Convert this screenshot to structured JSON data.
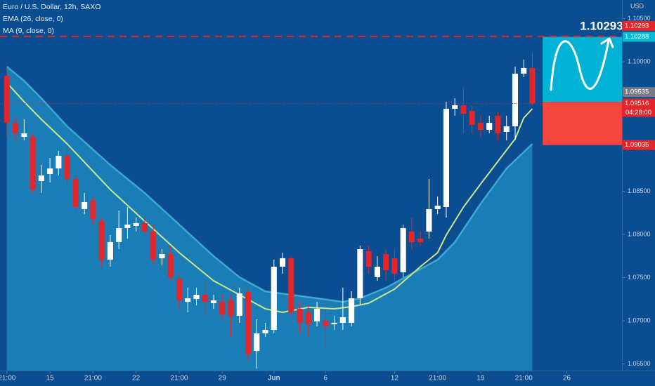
{
  "chart_data": {
    "type": "candlestick",
    "title": "Euro / U.S. Dollar, 12h, SAXO",
    "indicators": [
      "EMA (26, close, 0)",
      "MA (9, close, 0)"
    ],
    "currency": "USD",
    "up_color": "#ffffff",
    "down_color": "#e3262b",
    "open": [
      1.09837,
      1.09293,
      1.0913,
      1.0913,
      1.08618,
      1.08699,
      1.08764,
      1.08911,
      1.08642,
      1.08293,
      1.0839,
      1.08154,
      1.07707,
      1.07911,
      1.08073,
      1.08098,
      1.0813,
      1.08033,
      1.07724,
      1.07772,
      1.0748,
      1.07219,
      1.07252,
      1.07301,
      1.07203,
      1.07219,
      1.07236,
      1.07057,
      1.07333,
      1.0665,
      1.06854,
      1.06894,
      1.07626,
      1.07724,
      1.07138,
      1.07098,
      1.06992,
      1.07,
      1.06959,
      1.06976,
      1.06976,
      1.0726,
      1.07805,
      1.07504,
      1.07772,
      1.07724,
      1.07561,
      1.08033,
      1.07951,
      1.08033,
      1.08293,
      1.08317,
      1.09455,
      1.09496,
      1.09431,
      1.09293,
      1.09211,
      1.09374,
      1.09187,
      1.09252,
      1.09862,
      1.09927
    ],
    "high": [
      1.09943,
      1.09374,
      1.09333,
      1.09171,
      1.08805,
      1.08886,
      1.08967,
      1.09008,
      1.08683,
      1.0848,
      1.08439,
      1.08195,
      1.07992,
      1.08276,
      1.08317,
      1.08195,
      1.08195,
      1.08114,
      1.07829,
      1.0787,
      1.07545,
      1.07382,
      1.07382,
      1.07463,
      1.07301,
      1.07301,
      1.07301,
      1.07382,
      1.07382,
      1.07016,
      1.06976,
      1.07707,
      1.07789,
      1.07748,
      1.07219,
      1.07179,
      1.07219,
      1.07138,
      1.07057,
      1.07382,
      1.07342,
      1.0787,
      1.0787,
      1.07748,
      1.07829,
      1.07829,
      1.08114,
      1.08195,
      1.08033,
      1.08642,
      1.08439,
      1.09537,
      1.09577,
      1.09699,
      1.09496,
      1.09374,
      1.09374,
      1.09415,
      1.09374,
      1.09943,
      1.10024,
      1.10106
    ],
    "low": [
      1.0913,
      1.09089,
      1.09089,
      1.0848,
      1.0848,
      1.08602,
      1.08683,
      1.08561,
      1.08276,
      1.08236,
      1.08114,
      1.07626,
      1.07626,
      1.07829,
      1.07951,
      1.08033,
      1.07992,
      1.07642,
      1.07642,
      1.07463,
      1.07138,
      1.07098,
      1.07179,
      1.07057,
      1.07138,
      1.07016,
      1.06813,
      1.06976,
      1.06529,
      1.06447,
      1.06813,
      1.06854,
      1.07545,
      1.07057,
      1.06854,
      1.06813,
      1.06935,
      1.06691,
      1.06894,
      1.06894,
      1.06935,
      1.07179,
      1.07545,
      1.07463,
      1.07463,
      1.0748,
      1.07504,
      1.07829,
      1.0787,
      1.07951,
      1.08236,
      1.08195,
      1.09374,
      1.09171,
      1.09171,
      1.0913,
      1.09171,
      1.09089,
      1.09089,
      1.09089,
      1.09821,
      1.09496
    ],
    "close": [
      1.09293,
      1.09171,
      1.09171,
      1.0852,
      1.08683,
      1.08764,
      1.08911,
      1.08642,
      1.08317,
      1.08374,
      1.08179,
      1.07707,
      1.07911,
      1.08073,
      1.08114,
      1.0813,
      1.08033,
      1.07707,
      1.07772,
      1.07504,
      1.07236,
      1.0726,
      1.07301,
      1.07219,
      1.07236,
      1.07073,
      1.07057,
      1.07317,
      1.0661,
      1.06854,
      1.06894,
      1.07626,
      1.07724,
      1.07098,
      1.06976,
      1.06959,
      1.07138,
      1.06935,
      1.06976,
      1.07041,
      1.0726,
      1.07829,
      1.07626,
      1.07626,
      1.07585,
      1.07545,
      1.08073,
      1.07911,
      1.07911,
      1.08293,
      1.08333,
      1.09455,
      1.09496,
      1.09398,
      1.09268,
      1.09211,
      1.09293,
      1.09171,
      1.09252,
      1.09862,
      1.09927,
      1.09516
    ],
    "ema_band": {
      "color": "#1a7db6",
      "line_color": "#4fbcdc",
      "x": [
        0,
        2,
        4,
        7,
        12,
        16,
        20,
        24,
        27,
        30,
        33,
        36,
        39,
        41,
        44,
        47,
        50,
        52,
        55,
        58,
        61
      ],
      "values": [
        1.09943,
        1.0978,
        1.09577,
        1.09252,
        1.08805,
        1.0848,
        1.08114,
        1.07748,
        1.07504,
        1.07341,
        1.07301,
        1.0726,
        1.07219,
        1.0726,
        1.07382,
        1.07545,
        1.07707,
        1.07911,
        1.08358,
        1.08764,
        1.09049
      ]
    },
    "ma_line": {
      "color": "#c9e68a",
      "x": [
        0,
        2,
        4,
        7,
        12,
        16,
        20,
        24,
        27,
        30,
        32,
        35,
        38,
        40,
        42,
        45,
        48,
        50,
        51,
        53,
        55,
        57,
        59,
        60,
        61
      ],
      "values": [
        1.09756,
        1.09537,
        1.09333,
        1.09049,
        1.0852,
        1.08154,
        1.07789,
        1.07463,
        1.07301,
        1.07138,
        1.07098,
        1.07155,
        1.07138,
        1.07163,
        1.07203,
        1.07366,
        1.07626,
        1.07789,
        1.07992,
        1.08317,
        1.08585,
        1.08846,
        1.09106,
        1.0935,
        1.09455
      ]
    },
    "annotation": {
      "price": 1.10293,
      "color": "#e3262b"
    },
    "position": {
      "x_start": 62.2,
      "target": 1.10288,
      "entry": 1.09535,
      "stop": 1.09035,
      "profit_color": "#00b3d6",
      "loss_color": "#f4453f",
      "target_color": "#00bcd4",
      "entry_color": "#787b86",
      "stop_color": "#e3262b"
    },
    "countdown": "04:28:00",
    "ylim": [
      1.06423,
      1.10715
    ],
    "yticks": [
      {
        "value": 1.105,
        "label": "1.10500"
      },
      {
        "value": 1.1,
        "label": "1.10000"
      },
      {
        "value": 1.085,
        "label": "1.08500"
      },
      {
        "value": 1.08,
        "label": "1.08000"
      },
      {
        "value": 1.075,
        "label": "1.07500"
      },
      {
        "value": 1.07,
        "label": "1.07000"
      },
      {
        "value": 1.065,
        "label": "1.06500"
      }
    ],
    "xlim": [
      -0.8,
      71.4
    ],
    "xticks": [
      {
        "value": 0,
        "label": "21:00"
      },
      {
        "value": 5,
        "label": "15"
      },
      {
        "value": 10,
        "label": "21:00"
      },
      {
        "value": 15,
        "label": "22"
      },
      {
        "value": 20,
        "label": "21:00"
      },
      {
        "value": 25,
        "label": "29"
      },
      {
        "value": 31,
        "label": "Jun"
      },
      {
        "value": 37,
        "label": "6"
      },
      {
        "value": 45,
        "label": "12"
      },
      {
        "value": 50,
        "label": "21:00"
      },
      {
        "value": 55,
        "label": "19"
      },
      {
        "value": 60,
        "label": "21:00"
      },
      {
        "value": 65,
        "label": "26"
      }
    ]
  }
}
